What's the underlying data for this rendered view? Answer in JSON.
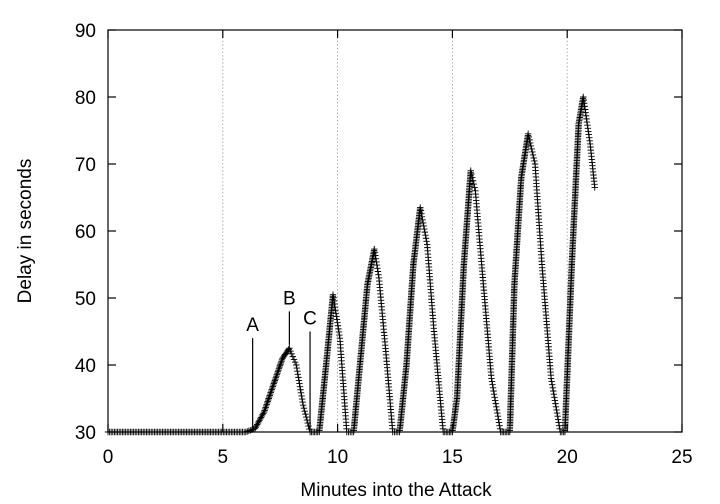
{
  "chart_data": {
    "type": "scatter",
    "title": "",
    "xlabel": "Minutes into the Attack",
    "ylabel": "Delay in seconds",
    "xlim": [
      0,
      25
    ],
    "ylim": [
      30,
      90
    ],
    "xticks": [
      0,
      5,
      10,
      15,
      20,
      25
    ],
    "yticks": [
      30,
      40,
      50,
      60,
      70,
      80,
      90
    ],
    "grid": "vertical dotted lines at x = 5, 10, 15, 20",
    "marker": "+",
    "marker_color": "#000000",
    "legend": "none",
    "series": [
      {
        "x": [
          0,
          6.0,
          6.4,
          6.8,
          7.2,
          7.6,
          7.9,
          8.2,
          8.5,
          8.8,
          9.2,
          9.5,
          9.8,
          10.1,
          10.4,
          10.7,
          11.0,
          11.3,
          11.6,
          11.8,
          12.1,
          12.4,
          12.7,
          13.0,
          13.3,
          13.6,
          13.9,
          14.2,
          14.6,
          15.0,
          15.2,
          15.5,
          15.8,
          16.0,
          16.3,
          16.7,
          17.1,
          17.5,
          17.7,
          18.0,
          18.3,
          18.6,
          18.9,
          19.3,
          19.7,
          19.9,
          20.2,
          20.5,
          20.7,
          21.0,
          21.2
        ],
        "y": [
          30,
          30,
          30.5,
          33,
          37,
          41,
          42.5,
          40,
          34,
          30,
          30,
          40,
          50.5,
          44,
          30,
          30,
          41,
          52,
          57.3,
          53,
          42,
          30,
          30,
          40,
          55,
          63.5,
          58,
          45,
          30,
          30,
          35,
          55,
          69,
          66,
          54,
          38,
          30,
          30,
          52,
          68,
          74.5,
          70,
          55,
          38,
          30,
          30,
          55,
          76,
          80,
          73,
          66.5
        ]
      }
    ],
    "annotations": [
      {
        "label": "A",
        "x": 6.3,
        "y_from": 30,
        "y_to": 44
      },
      {
        "label": "B",
        "x": 7.9,
        "y_from": 43,
        "y_to": 48
      },
      {
        "label": "C",
        "x": 8.8,
        "y_from": 30,
        "y_to": 45
      }
    ]
  }
}
